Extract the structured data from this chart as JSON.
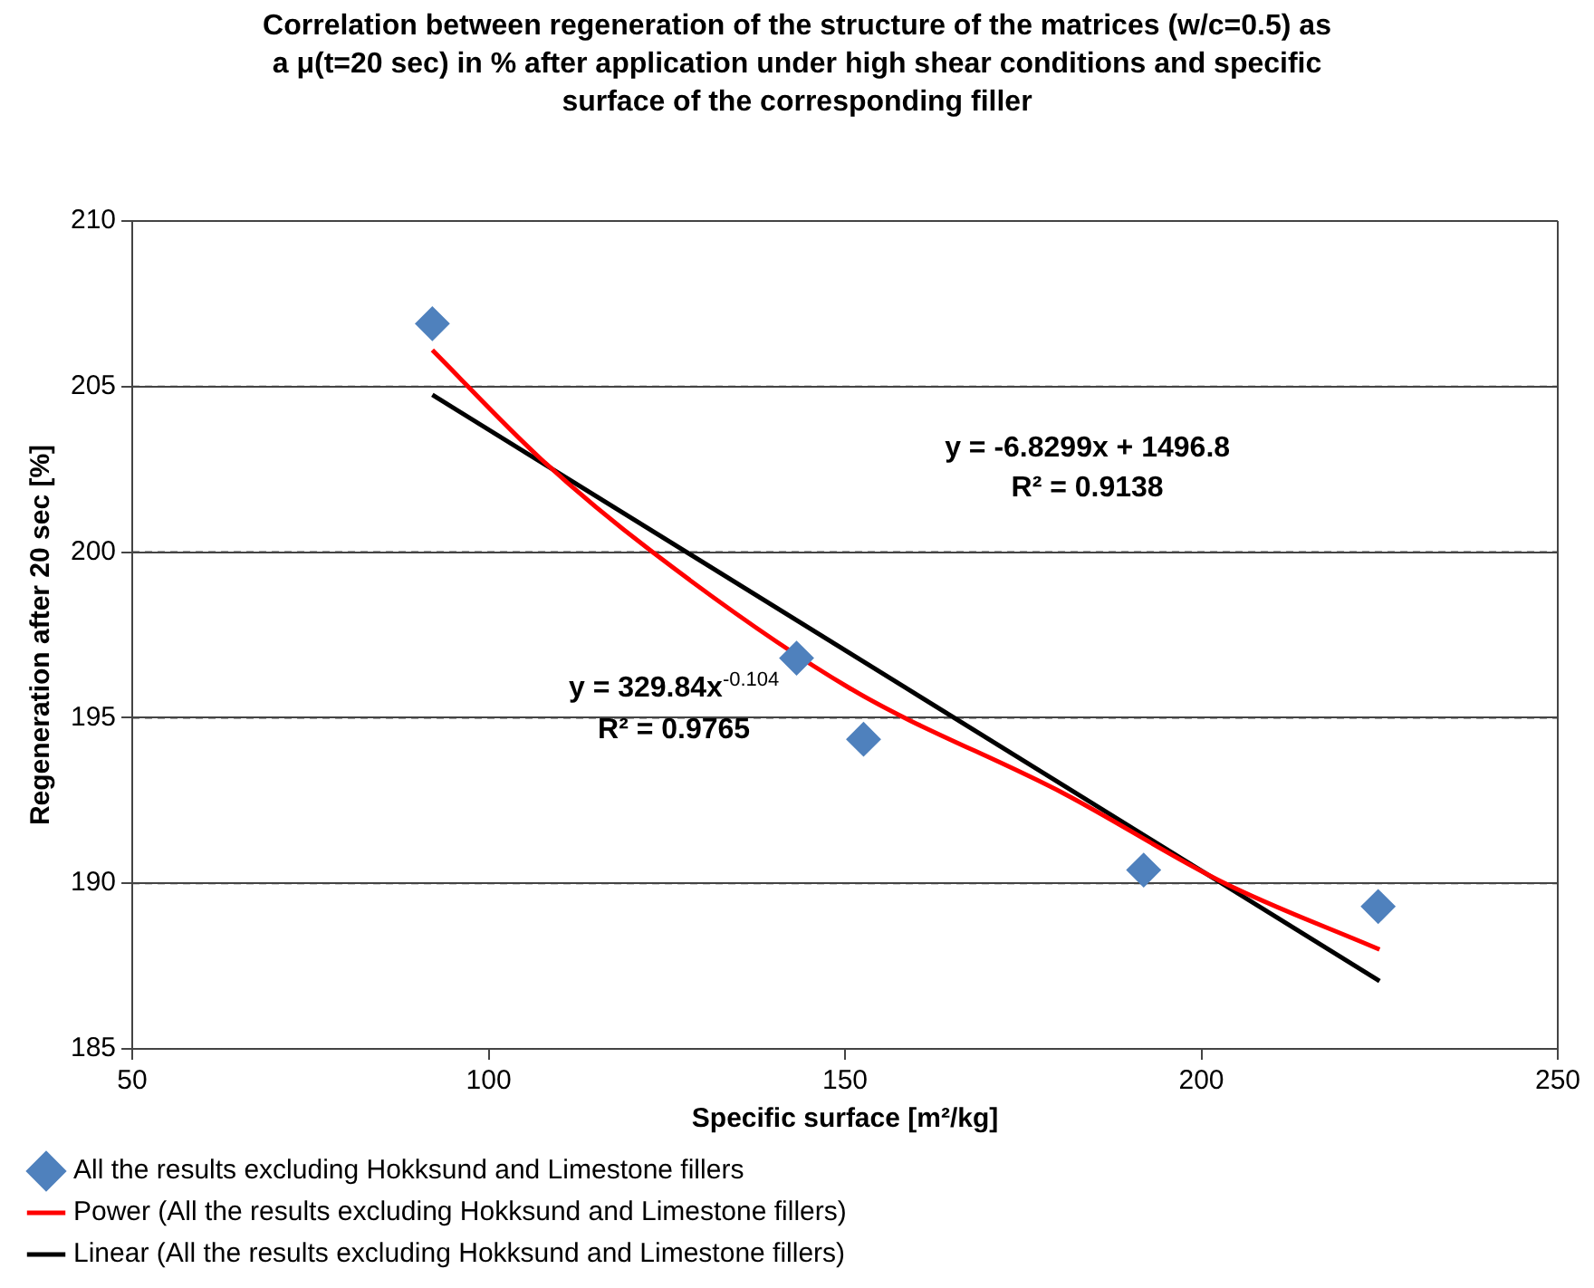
{
  "chart_data": {
    "type": "scatter",
    "title": "Correlation between regeneration of the structure of the matrices (w/c=0.5) as a μ(t=20 sec) in % after application under high shear conditions and specific surface of the corresponding filler",
    "xlabel": "Specific surface [m²/kg]",
    "ylabel": "Regeneration after 20 sec [%]",
    "xlim": [
      50,
      250
    ],
    "xticks": [
      50,
      100,
      150,
      200,
      250
    ],
    "ylim": [
      185,
      210
    ],
    "yticks": [
      185,
      190,
      195,
      200,
      205,
      210
    ],
    "grid": "y",
    "legend": "bottom",
    "series": [
      {
        "name": "All the results excluding Hokksund and Limestone fillers",
        "marker": "diamond",
        "color": "#4f81bd",
        "x": [
          92.1,
          143.2,
          152.6,
          191.9,
          224.8
        ],
        "values": [
          206.9,
          196.8,
          194.35,
          190.4,
          189.3
        ]
      },
      {
        "name": "Power (All the results excluding Hokksund and Limestone fillers)",
        "type": "line",
        "marker": "none",
        "color": "#ff0000",
        "x": [
          92.1,
          107.4,
          123,
          150.6,
          180.8,
          203.3,
          225
        ],
        "values": [
          206.1,
          202.8,
          200,
          195.9,
          192.7,
          190,
          188
        ]
      },
      {
        "name": "Linear (All the results excluding Hokksund and Limestone fillers)",
        "type": "line",
        "marker": "none",
        "color": "#000000",
        "x": [
          92.1,
          225
        ],
        "values": [
          204.75,
          187.05
        ]
      }
    ],
    "annotations": [
      "y = -6.8299x + 1496.8\nR² = 0.9138",
      "y = 329.84x$^{-0.104}$\nR² = 0.9765"
    ]
  }
}
